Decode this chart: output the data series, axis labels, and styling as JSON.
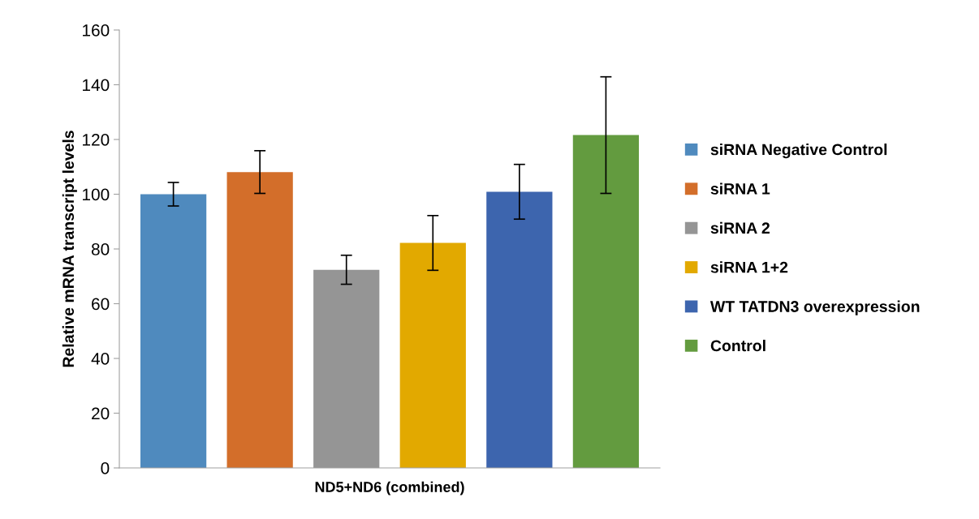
{
  "chart_data": {
    "type": "bar",
    "ylabel": "Relative mRNA transcript levels",
    "categories": [
      "ND5+ND6 (combined)"
    ],
    "series": [
      {
        "name": "siRNA Negative Control",
        "color": "#4f8abe",
        "values": [
          100
        ],
        "errors": [
          4.3
        ]
      },
      {
        "name": "siRNA 1",
        "color": "#d36e2a",
        "values": [
          108.1
        ],
        "errors": [
          7.8
        ]
      },
      {
        "name": "siRNA 2",
        "color": "#959595",
        "values": [
          72.4
        ],
        "errors": [
          5.3
        ]
      },
      {
        "name": "siRNA 1+2",
        "color": "#e2a900",
        "values": [
          82.2
        ],
        "errors": [
          10
        ]
      },
      {
        "name": "WT TATDN3 overexpression",
        "color": "#3d65ae",
        "values": [
          100.9
        ],
        "errors": [
          10
        ]
      },
      {
        "name": "Control",
        "color": "#639b3f",
        "values": [
          121.6
        ],
        "errors": [
          21.3
        ]
      }
    ],
    "ylim": [
      0,
      160
    ],
    "yticks": [
      0,
      20,
      40,
      60,
      80,
      100,
      120,
      140,
      160
    ],
    "grid": false,
    "legend": "right"
  }
}
